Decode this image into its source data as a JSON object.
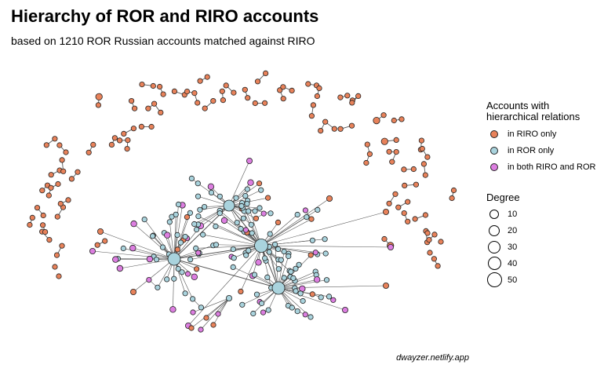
{
  "title": "Hierarchy of ROR and RIRO accounts",
  "subtitle": "based on 1210 ROR Russian accounts matched against RIRO",
  "caption": "dwayzer.netlify.app",
  "legend": {
    "group_title": "Accounts with\nhierarchical relations",
    "groups": [
      {
        "label": "in RIRO only",
        "color": "#e8825a"
      },
      {
        "label": "in ROR only",
        "color": "#a9d3dd"
      },
      {
        "label": "in both RIRO and ROR",
        "color": "#dc7ee0"
      }
    ],
    "degree_title": "Degree",
    "degrees": [
      "10",
      "20",
      "30",
      "40",
      "50"
    ]
  },
  "colors": {
    "riro": "#e8825a",
    "ror": "#a9d3dd",
    "both": "#dc7ee0",
    "edge": "#555555",
    "stroke": "#222222"
  },
  "chart_data": {
    "type": "network",
    "hubs": [
      {
        "id": "hubA",
        "degree": 45,
        "group": "ror"
      },
      {
        "id": "hubB",
        "degree": 50,
        "group": "ror"
      },
      {
        "id": "hubC",
        "degree": 40,
        "group": "ror"
      },
      {
        "id": "hubD",
        "degree": 28,
        "group": "ror"
      }
    ],
    "peripheral_pairs": 62
  }
}
